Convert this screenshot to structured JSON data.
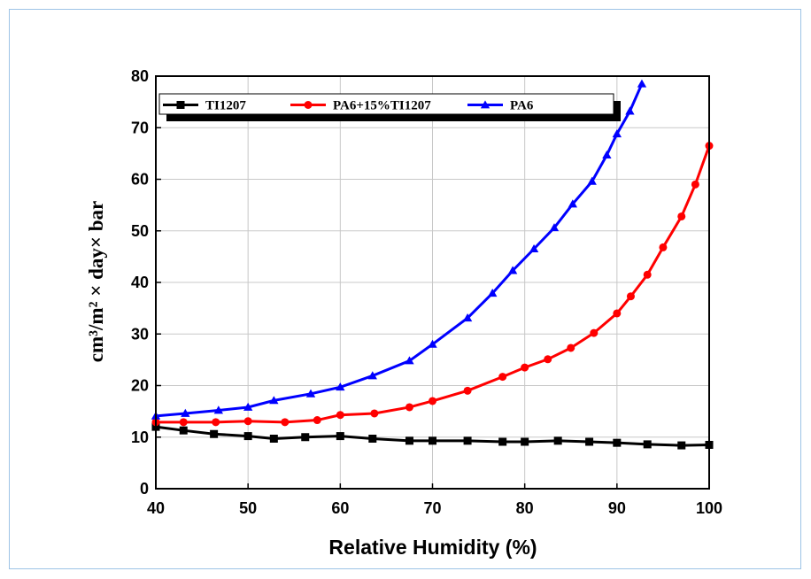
{
  "chart_data": {
    "type": "line",
    "xlabel": "Relative Humidity (%)",
    "ylabel": "cm³/m² × day× bar",
    "xlim": [
      40,
      100
    ],
    "ylim": [
      0,
      80
    ],
    "xticks": [
      40,
      50,
      60,
      70,
      80,
      90,
      100
    ],
    "yticks": [
      0,
      10,
      20,
      30,
      40,
      50,
      60,
      70,
      80
    ],
    "grid": true,
    "legend_position": "top",
    "series": [
      {
        "name": "TI1207",
        "color": "#000000",
        "marker": "square",
        "x": [
          40,
          43,
          46.3,
          50,
          52.8,
          56.2,
          60,
          63.5,
          67.5,
          70,
          73.8,
          77.6,
          80,
          83.6,
          87,
          90,
          93.3,
          97,
          100
        ],
        "y": [
          12,
          11.3,
          10.6,
          10.2,
          9.7,
          10,
          10.2,
          9.7,
          9.3,
          9.3,
          9.3,
          9.1,
          9.1,
          9.3,
          9.1,
          8.9,
          8.6,
          8.4,
          8.5
        ]
      },
      {
        "name": "PA6+15%TI1207",
        "color": "#ff0000",
        "marker": "circle",
        "x": [
          40,
          43,
          46.5,
          50,
          54,
          57.5,
          60,
          63.7,
          67.5,
          70,
          73.8,
          77.6,
          80,
          82.5,
          85,
          87.5,
          90,
          91.5,
          93.3,
          95,
          97,
          98.5,
          100
        ],
        "y": [
          12.9,
          12.9,
          12.9,
          13.1,
          12.9,
          13.3,
          14.3,
          14.6,
          15.8,
          17,
          19,
          21.7,
          23.5,
          25.1,
          27.3,
          30.2,
          34,
          37.3,
          41.5,
          46.8,
          52.8,
          59,
          66.5
        ]
      },
      {
        "name": "PA6",
        "color": "#0000ff",
        "marker": "triangle",
        "x": [
          40,
          43.2,
          46.8,
          50,
          52.8,
          56.8,
          60,
          63.5,
          67.5,
          70,
          73.8,
          76.5,
          78.7,
          81,
          83.2,
          85.2,
          87.3,
          88.9,
          90,
          91.4,
          92.7
        ],
        "y": [
          14.1,
          14.6,
          15.2,
          15.8,
          17.1,
          18.4,
          19.7,
          21.9,
          24.8,
          28,
          33.1,
          37.9,
          42.3,
          46.5,
          50.6,
          55.2,
          59.6,
          64.7,
          68.8,
          73.2,
          78.5
        ]
      }
    ]
  }
}
